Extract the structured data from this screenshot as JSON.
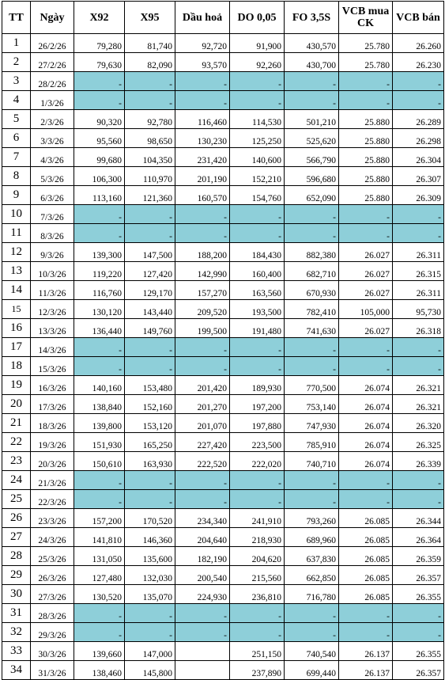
{
  "headers": [
    "TT",
    "Ngày",
    "X92",
    "X95",
    "Dầu hoả",
    "DO 0,05",
    "FO 3,5S",
    "VCB mua CK",
    "VCB bán"
  ],
  "rows": [
    {
      "tt": "1",
      "date": "26/2/26",
      "values": [
        "79,280",
        "81,740",
        "92,720",
        "91,900",
        "430,570",
        "25.780",
        "26.260"
      ]
    },
    {
      "tt": "2",
      "date": "27/2/26",
      "values": [
        "79,630",
        "82,090",
        "93,570",
        "92,260",
        "430,700",
        "25.780",
        "26.230"
      ]
    },
    {
      "tt": "3",
      "date": "28/2/26",
      "holiday": true,
      "values": [
        "-",
        "-",
        "-",
        "-",
        "-",
        "-",
        "-"
      ]
    },
    {
      "tt": "4",
      "date": "1/3/26",
      "holiday": true,
      "values": [
        "-",
        "-",
        "-",
        "-",
        "-",
        "-",
        "-"
      ]
    },
    {
      "tt": "5",
      "date": "2/3/26",
      "values": [
        "90,320",
        "92,780",
        "116,460",
        "114,530",
        "501,210",
        "25.880",
        "26.289"
      ]
    },
    {
      "tt": "6",
      "date": "3/3/26",
      "values": [
        "95,560",
        "98,650",
        "130,230",
        "125,250",
        "525,620",
        "25.880",
        "26.298"
      ]
    },
    {
      "tt": "7",
      "date": "4/3/26",
      "values": [
        "99,680",
        "104,350",
        "231,420",
        "140,600",
        "566,790",
        "25.880",
        "26.304"
      ]
    },
    {
      "tt": "8",
      "date": "5/3/26",
      "values": [
        "106,300",
        "110,970",
        "201,190",
        "152,210",
        "596,680",
        "25.880",
        "26.307"
      ]
    },
    {
      "tt": "9",
      "date": "6/3/26",
      "values": [
        "113,160",
        "121,360",
        "160,570",
        "154,760",
        "652,090",
        "25.880",
        "26.309"
      ]
    },
    {
      "tt": "10",
      "date": "7/3/26",
      "holiday": true,
      "values": [
        "-",
        "-",
        "-",
        "-",
        "-",
        "-",
        "-"
      ]
    },
    {
      "tt": "11",
      "date": "8/3/26",
      "holiday": true,
      "values": [
        "-",
        "-",
        "-",
        "-",
        "-",
        "-",
        "-"
      ]
    },
    {
      "tt": "12",
      "date": "9/3/26",
      "values": [
        "139,300",
        "147,500",
        "188,200",
        "184,430",
        "882,380",
        "26.027",
        "26.311"
      ]
    },
    {
      "tt": "13",
      "date": "10/3/26",
      "values": [
        "119,220",
        "127,420",
        "142,990",
        "160,400",
        "682,710",
        "26.027",
        "26.315"
      ]
    },
    {
      "tt": "14",
      "date": "11/3/26",
      "values": [
        "116,760",
        "129,170",
        "157,270",
        "163,560",
        "670,930",
        "26.027",
        "26.311"
      ]
    },
    {
      "tt": "15",
      "date": "12/3/26",
      "small": true,
      "values": [
        "130,120",
        "143,440",
        "209,520",
        "193,500",
        "782,410",
        "105,000",
        "95,730"
      ]
    },
    {
      "tt": "16",
      "date": "13/3/26",
      "values": [
        "136,440",
        "149,760",
        "199,500",
        "191,480",
        "741,630",
        "26.027",
        "26.318"
      ]
    },
    {
      "tt": "17",
      "date": "14/3/26",
      "holiday": true,
      "values": [
        "-",
        "-",
        "-",
        "-",
        "-",
        "-",
        "-"
      ]
    },
    {
      "tt": "18",
      "date": "15/3/26",
      "holiday": true,
      "values": [
        "-",
        "-",
        "-",
        "-",
        "-",
        "-",
        "-"
      ]
    },
    {
      "tt": "19",
      "date": "16/3/26",
      "values": [
        "140,160",
        "153,480",
        "201,420",
        "189,930",
        "770,500",
        "26.074",
        "26.321"
      ]
    },
    {
      "tt": "20",
      "date": "17/3/26",
      "values": [
        "138,840",
        "152,160",
        "201,270",
        "197,200",
        "753,140",
        "26.074",
        "26.321"
      ]
    },
    {
      "tt": "21",
      "date": "18/3/26",
      "values": [
        "139,800",
        "153,120",
        "201,070",
        "197,880",
        "747,930",
        "26.074",
        "26.320"
      ]
    },
    {
      "tt": "22",
      "date": "19/3/26",
      "values": [
        "151,930",
        "165,250",
        "227,420",
        "223,500",
        "785,910",
        "26.074",
        "26.325"
      ]
    },
    {
      "tt": "23",
      "date": "20/3/26",
      "values": [
        "150,610",
        "163,930",
        "222,520",
        "222,020",
        "740,710",
        "26.074",
        "26.339"
      ]
    },
    {
      "tt": "24",
      "date": "21/3/26",
      "holiday": true,
      "values": [
        "-",
        "-",
        "-",
        "-",
        "-",
        "-",
        "-"
      ]
    },
    {
      "tt": "25",
      "date": "22/3/26",
      "holiday": true,
      "values": [
        "-",
        "-",
        "-",
        "-",
        "-",
        "-",
        "-"
      ]
    },
    {
      "tt": "26",
      "date": "23/3/26",
      "values": [
        "157,200",
        "170,520",
        "234,340",
        "241,910",
        "793,260",
        "26.085",
        "26.344"
      ]
    },
    {
      "tt": "27",
      "date": "24/3/26",
      "values": [
        "141,810",
        "146,360",
        "204,640",
        "218,930",
        "689,960",
        "26.085",
        "26.364"
      ]
    },
    {
      "tt": "28",
      "date": "25/3/26",
      "values": [
        "131,050",
        "135,600",
        "182,190",
        "204,620",
        "637,830",
        "26.085",
        "26.359"
      ]
    },
    {
      "tt": "29",
      "date": "26/3/26",
      "values": [
        "127,480",
        "132,030",
        "200,540",
        "215,560",
        "662,850",
        "26.085",
        "26.357"
      ]
    },
    {
      "tt": "30",
      "date": "27/3/26",
      "values": [
        "130,520",
        "135,070",
        "224,930",
        "236,810",
        "716,780",
        "26.085",
        "26.355"
      ]
    },
    {
      "tt": "31",
      "date": "28/3/26",
      "holiday": true,
      "values": [
        "-",
        "-",
        "-",
        "-",
        "-",
        "-",
        "-"
      ]
    },
    {
      "tt": "32",
      "date": "29/3/26",
      "holiday": true,
      "values": [
        "-",
        "-",
        "-",
        "-",
        "-",
        "-",
        "-"
      ]
    },
    {
      "tt": "33",
      "date": "30/3/26",
      "values": [
        "139,660",
        "147,000",
        "",
        "251,150",
        "740,540",
        "26.137",
        "26.355"
      ]
    },
    {
      "tt": "34",
      "date": "31/3/26",
      "values": [
        "138,460",
        "145,800",
        "",
        "237,890",
        "699,440",
        "26.137",
        "26.357"
      ]
    }
  ]
}
